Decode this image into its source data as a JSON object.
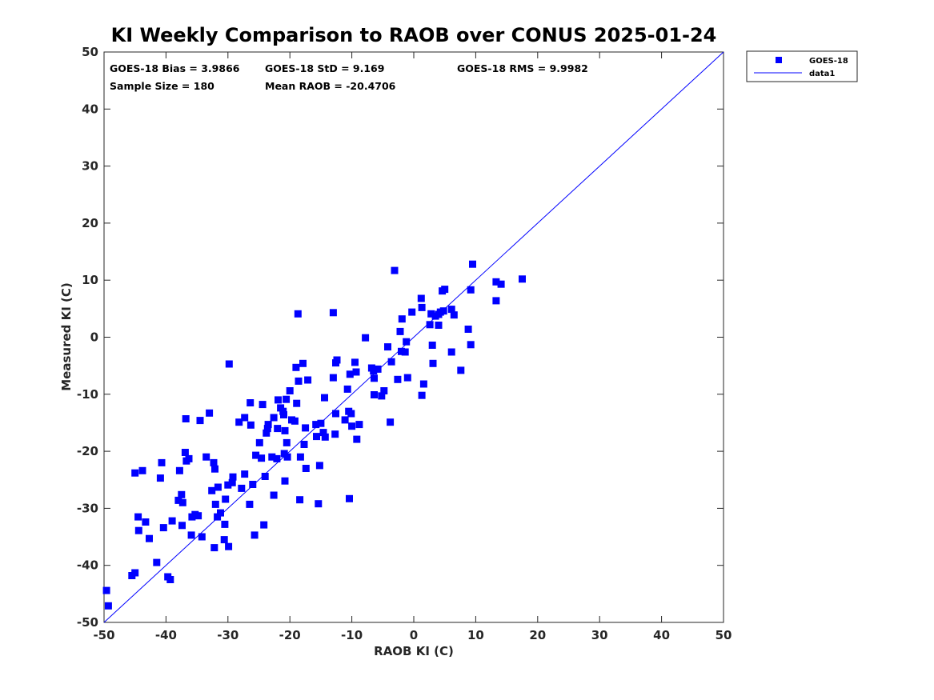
{
  "chart_data": {
    "type": "scatter",
    "title": "KI Weekly Comparison to RAOB over CONUS 2025-01-24",
    "xlabel": "RAOB KI (C)",
    "ylabel": "Measured KI (C)",
    "xlim": [
      -50,
      50
    ],
    "ylim": [
      -50,
      50
    ],
    "xticks": [
      -50,
      -40,
      -30,
      -20,
      -10,
      0,
      10,
      20,
      30,
      40,
      50
    ],
    "yticks": [
      -50,
      -40,
      -30,
      -20,
      -10,
      0,
      10,
      20,
      30,
      40,
      50
    ],
    "grid": false,
    "legend_position": "outside-top-right",
    "stats": [
      "GOES-18 Bias = 3.9866",
      "GOES-18 StD = 9.169",
      "GOES-18 RMS = 9.9982",
      "Sample Size = 180",
      "Mean RAOB = -20.4706"
    ],
    "series": [
      {
        "name": "GOES-18",
        "kind": "scatter",
        "marker": "square",
        "color": "#0000ff",
        "points": [
          [
            -49.6,
            -44.4
          ],
          [
            -49.3,
            -47.1
          ],
          [
            -45.5,
            -41.8
          ],
          [
            -45.0,
            -41.3
          ],
          [
            -45.0,
            -23.8
          ],
          [
            -44.5,
            -31.5
          ],
          [
            -44.4,
            -33.9
          ],
          [
            -43.8,
            -23.4
          ],
          [
            -43.3,
            -32.4
          ],
          [
            -42.7,
            -35.3
          ],
          [
            -41.5,
            -39.5
          ],
          [
            -40.9,
            -24.7
          ],
          [
            -40.7,
            -22.0
          ],
          [
            -40.4,
            -33.4
          ],
          [
            -39.7,
            -42.0
          ],
          [
            -39.3,
            -42.5
          ],
          [
            -39.0,
            -32.2
          ],
          [
            -38.0,
            -28.6
          ],
          [
            -37.8,
            -23.4
          ],
          [
            -37.5,
            -27.6
          ],
          [
            -37.4,
            -33.0
          ],
          [
            -37.3,
            -29.0
          ],
          [
            -36.9,
            -20.2
          ],
          [
            -36.8,
            -14.3
          ],
          [
            -36.7,
            -21.7
          ],
          [
            -36.3,
            -21.3
          ],
          [
            -35.9,
            -34.7
          ],
          [
            -35.8,
            -31.5
          ],
          [
            -35.3,
            -31.1
          ],
          [
            -34.8,
            -31.3
          ],
          [
            -34.5,
            -14.6
          ],
          [
            -34.2,
            -35.0
          ],
          [
            -33.5,
            -21.0
          ],
          [
            -33.0,
            -13.3
          ],
          [
            -32.6,
            -26.9
          ],
          [
            -32.3,
            -22.0
          ],
          [
            -32.2,
            -36.9
          ],
          [
            -32.1,
            -23.1
          ],
          [
            -32.0,
            -29.3
          ],
          [
            -31.7,
            -31.5
          ],
          [
            -31.6,
            -26.3
          ],
          [
            -31.2,
            -30.8
          ],
          [
            -30.6,
            -35.5
          ],
          [
            -30.5,
            -32.8
          ],
          [
            -30.4,
            -28.4
          ],
          [
            -30.0,
            -25.9
          ],
          [
            -29.9,
            -36.7
          ],
          [
            -29.8,
            -4.7
          ],
          [
            -29.3,
            -25.5
          ],
          [
            -29.2,
            -24.5
          ],
          [
            -28.2,
            -14.9
          ],
          [
            -27.8,
            -26.5
          ],
          [
            -27.3,
            -24.0
          ],
          [
            -27.3,
            -14.1
          ],
          [
            -26.5,
            -29.3
          ],
          [
            -26.4,
            -11.5
          ],
          [
            -26.3,
            -15.4
          ],
          [
            -26.0,
            -25.8
          ],
          [
            -25.7,
            -34.7
          ],
          [
            -25.5,
            -20.7
          ],
          [
            -24.9,
            -18.5
          ],
          [
            -24.6,
            -21.2
          ],
          [
            -24.4,
            -11.8
          ],
          [
            -24.2,
            -32.9
          ],
          [
            -24.0,
            -24.4
          ],
          [
            -23.8,
            -16.8
          ],
          [
            -23.6,
            -16.0
          ],
          [
            -23.5,
            -15.3
          ],
          [
            -22.9,
            -21.0
          ],
          [
            -22.6,
            -27.7
          ],
          [
            -22.6,
            -14.1
          ],
          [
            -22.1,
            -21.3
          ],
          [
            -22.0,
            -16.0
          ],
          [
            -21.9,
            -11.0
          ],
          [
            -21.5,
            -12.4
          ],
          [
            -21.1,
            -13.0
          ],
          [
            -21.0,
            -13.6
          ],
          [
            -20.9,
            -20.4
          ],
          [
            -20.8,
            -25.2
          ],
          [
            -20.8,
            -16.4
          ],
          [
            -20.6,
            -10.9
          ],
          [
            -20.5,
            -18.5
          ],
          [
            -20.4,
            -21.0
          ],
          [
            -20.0,
            -9.4
          ],
          [
            -19.7,
            -14.5
          ],
          [
            -19.2,
            -14.7
          ],
          [
            -19.0,
            -5.3
          ],
          [
            -18.9,
            -11.6
          ],
          [
            -18.7,
            4.1
          ],
          [
            -18.6,
            -7.7
          ],
          [
            -18.4,
            -28.5
          ],
          [
            -18.3,
            -21.0
          ],
          [
            -17.9,
            -4.6
          ],
          [
            -17.7,
            -18.8
          ],
          [
            -17.5,
            -15.9
          ],
          [
            -17.4,
            -23.0
          ],
          [
            -17.1,
            -7.5
          ],
          [
            -15.8,
            -15.3
          ],
          [
            -15.7,
            -17.4
          ],
          [
            -15.4,
            -29.2
          ],
          [
            -15.2,
            -22.5
          ],
          [
            -15.0,
            -15.1
          ],
          [
            -14.6,
            -16.7
          ],
          [
            -14.4,
            -10.6
          ],
          [
            -14.3,
            -17.5
          ],
          [
            -13.0,
            -7.1
          ],
          [
            -13.0,
            4.3
          ],
          [
            -12.7,
            -17.0
          ],
          [
            -12.6,
            -4.5
          ],
          [
            -12.6,
            -13.4
          ],
          [
            -12.4,
            -4.0
          ],
          [
            -11.1,
            -14.5
          ],
          [
            -10.7,
            -9.1
          ],
          [
            -10.5,
            -13.0
          ],
          [
            -10.4,
            -28.3
          ],
          [
            -10.3,
            -6.5
          ],
          [
            -10.1,
            -13.4
          ],
          [
            -10.0,
            -15.6
          ],
          [
            -9.5,
            -4.4
          ],
          [
            -9.3,
            -6.1
          ],
          [
            -9.2,
            -17.9
          ],
          [
            -8.8,
            -15.3
          ],
          [
            -7.8,
            -0.1
          ],
          [
            -6.8,
            -5.4
          ],
          [
            -6.5,
            -5.9
          ],
          [
            -6.4,
            -7.2
          ],
          [
            -6.4,
            -10.1
          ],
          [
            -5.8,
            -5.6
          ],
          [
            -5.2,
            -10.3
          ],
          [
            -4.8,
            -9.4
          ],
          [
            -4.2,
            -1.7
          ],
          [
            -3.8,
            -14.9
          ],
          [
            -3.6,
            -4.3
          ],
          [
            -3.1,
            11.7
          ],
          [
            -2.6,
            -7.4
          ],
          [
            -2.2,
            1.0
          ],
          [
            -2.0,
            -2.5
          ],
          [
            -1.9,
            3.2
          ],
          [
            -1.4,
            -2.6
          ],
          [
            -1.2,
            -0.8
          ],
          [
            -1.0,
            -7.1
          ],
          [
            -0.3,
            4.4
          ],
          [
            1.2,
            6.8
          ],
          [
            1.3,
            -10.2
          ],
          [
            1.3,
            5.2
          ],
          [
            1.6,
            -8.2
          ],
          [
            2.6,
            2.2
          ],
          [
            2.8,
            4.1
          ],
          [
            3.0,
            -1.4
          ],
          [
            3.1,
            -4.6
          ],
          [
            3.5,
            3.7
          ],
          [
            4.0,
            4.0
          ],
          [
            4.0,
            2.1
          ],
          [
            4.3,
            4.4
          ],
          [
            4.6,
            8.1
          ],
          [
            4.8,
            4.6
          ],
          [
            5.0,
            8.4
          ],
          [
            6.1,
            -2.6
          ],
          [
            6.1,
            4.9
          ],
          [
            6.5,
            3.9
          ],
          [
            7.6,
            -5.8
          ],
          [
            8.8,
            1.4
          ],
          [
            9.2,
            -1.3
          ],
          [
            9.2,
            8.3
          ],
          [
            9.5,
            12.8
          ],
          [
            13.3,
            9.7
          ],
          [
            13.3,
            6.4
          ],
          [
            14.1,
            9.3
          ],
          [
            17.5,
            10.2
          ]
        ]
      },
      {
        "name": "data1",
        "kind": "line",
        "color": "#0000ff",
        "x": [
          -50,
          50
        ],
        "y": [
          -50,
          50
        ]
      }
    ]
  }
}
